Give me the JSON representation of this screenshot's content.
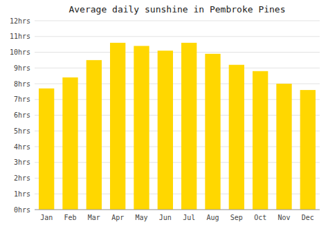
{
  "chart_data": {
    "type": "bar",
    "title": "Average daily sunshine in Pembroke Pines",
    "categories": [
      "Jan",
      "Feb",
      "Mar",
      "Apr",
      "May",
      "Jun",
      "Jul",
      "Aug",
      "Sep",
      "Oct",
      "Nov",
      "Dec"
    ],
    "values": [
      7.7,
      8.4,
      9.5,
      10.6,
      10.4,
      10.1,
      10.6,
      9.9,
      9.2,
      8.8,
      8.0,
      7.6
    ],
    "color": "#FFD700",
    "ylim": [
      0,
      12
    ],
    "yticks": [
      {
        "value": 0,
        "label": "0hrs"
      },
      {
        "value": 1,
        "label": "1hrs"
      },
      {
        "value": 2,
        "label": "2hrs"
      },
      {
        "value": 3,
        "label": "3hrs"
      },
      {
        "value": 4,
        "label": "4hrs"
      },
      {
        "value": 5,
        "label": "5hrs"
      },
      {
        "value": 6,
        "label": "6hrs"
      },
      {
        "value": 7,
        "label": "7hrs"
      },
      {
        "value": 8,
        "label": "8hrs"
      },
      {
        "value": 9,
        "label": "9hrs"
      },
      {
        "value": 10,
        "label": "10hrs"
      },
      {
        "value": 11,
        "label": "11hrs"
      },
      {
        "value": 12,
        "label": "12hrs"
      }
    ],
    "grid": true
  }
}
